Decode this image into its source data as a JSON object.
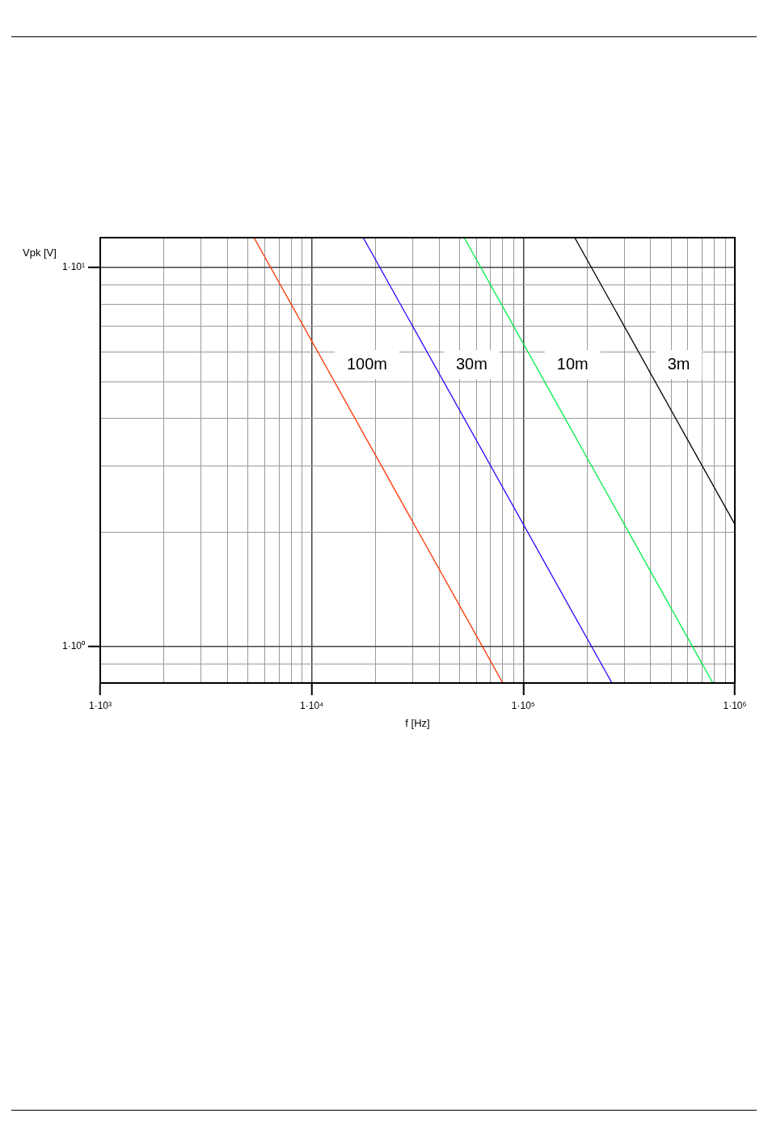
{
  "chart_data": {
    "type": "line",
    "xlabel": "f [Hz]",
    "ylabel": "Vpk [V]",
    "log": "xy",
    "grid": true,
    "legend": false,
    "marker": "none",
    "xlim": [
      1000,
      1000000
    ],
    "ylim": [
      0.8,
      12
    ],
    "xticks": [
      {
        "value": 1000,
        "label": "1·10³"
      },
      {
        "value": 2000,
        "label": null
      },
      {
        "value": 3000,
        "label": null
      },
      {
        "value": 4000,
        "label": null
      },
      {
        "value": 5000,
        "label": null
      },
      {
        "value": 6000,
        "label": null
      },
      {
        "value": 7000,
        "label": null
      },
      {
        "value": 8000,
        "label": null
      },
      {
        "value": 9000,
        "label": null
      },
      {
        "value": 10000,
        "label": "1·10⁴"
      },
      {
        "value": 20000,
        "label": null
      },
      {
        "value": 30000,
        "label": null
      },
      {
        "value": 40000,
        "label": null
      },
      {
        "value": 50000,
        "label": null
      },
      {
        "value": 60000,
        "label": null
      },
      {
        "value": 70000,
        "label": null
      },
      {
        "value": 80000,
        "label": null
      },
      {
        "value": 90000,
        "label": null
      },
      {
        "value": 100000,
        "label": "1·10⁵"
      },
      {
        "value": 200000,
        "label": null
      },
      {
        "value": 300000,
        "label": null
      },
      {
        "value": 400000,
        "label": null
      },
      {
        "value": 500000,
        "label": null
      },
      {
        "value": 600000,
        "label": null
      },
      {
        "value": 700000,
        "label": null
      },
      {
        "value": 800000,
        "label": null
      },
      {
        "value": 900000,
        "label": null
      },
      {
        "value": 1000000,
        "label": "1·10⁶"
      }
    ],
    "yticks": [
      {
        "value": 0.9,
        "label": null
      },
      {
        "value": 1,
        "label": "1·10⁰"
      },
      {
        "value": 2,
        "label": null
      },
      {
        "value": 3,
        "label": null
      },
      {
        "value": 4,
        "label": null
      },
      {
        "value": 5,
        "label": null
      },
      {
        "value": 6,
        "label": null
      },
      {
        "value": 7,
        "label": null
      },
      {
        "value": 8,
        "label": null
      },
      {
        "value": 9,
        "label": null
      },
      {
        "value": 10,
        "label": "1·10¹"
      }
    ],
    "series": [
      {
        "name": "100m",
        "color": "#ff3300",
        "x": [
          5330,
          80000
        ],
        "values": [
          12,
          0.8
        ]
      },
      {
        "name": "30m",
        "color": "#3300ff",
        "x": [
          17500,
          262500
        ],
        "values": [
          12,
          0.8
        ]
      },
      {
        "name": "10m",
        "color": "#00ee44",
        "x": [
          52500,
          787500
        ],
        "values": [
          12,
          0.8
        ]
      },
      {
        "name": "3m",
        "color": "#000000",
        "x": [
          175000,
          1000000
        ],
        "values": [
          12,
          2.1
        ]
      }
    ]
  }
}
